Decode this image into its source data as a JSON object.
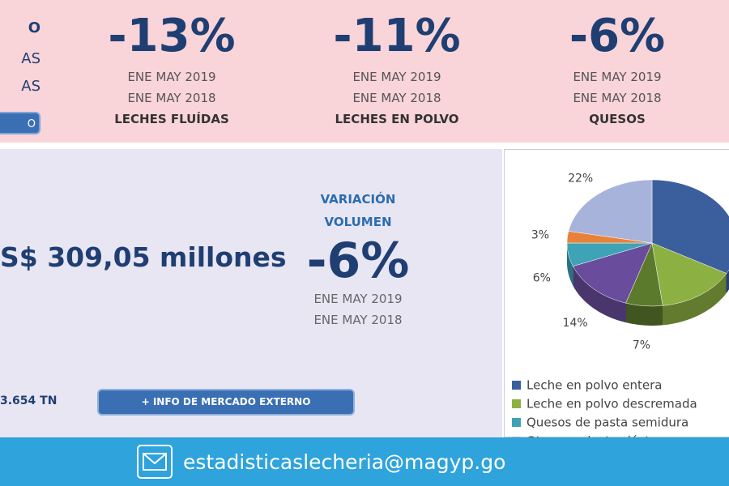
{
  "header": {
    "left": {
      "lines": [
        "O",
        "AS",
        "AS"
      ],
      "button": "O"
    },
    "stats": [
      {
        "value": "-13%",
        "period_current": "ENE MAY 2019",
        "period_previous": "ENE MAY 2018",
        "label": "LECHES FLUÍDAS"
      },
      {
        "value": "-11%",
        "period_current": "ENE MAY 2019",
        "period_previous": "ENE MAY 2018",
        "label": "LECHES EN POLVO"
      },
      {
        "value": "-6%",
        "period_current": "ENE MAY 2019",
        "period_previous": "ENE MAY 2018",
        "label": "QUESOS"
      }
    ]
  },
  "exports": {
    "amount": "S$ 309,05 millones",
    "variation_title": [
      "VARIACIÓN",
      "VOLUMEN"
    ],
    "variation": "-6%",
    "periods": [
      "ENE MAY 2019",
      "ENE MAY 2018"
    ],
    "volume": "3.654 TN",
    "button": "+ INFO DE MERCADO EXTERNO"
  },
  "pie": {
    "type": "pie",
    "values": [
      33,
      15,
      7,
      14,
      6,
      3,
      22
    ],
    "value_labels": [
      null,
      null,
      "7%",
      "14%",
      "6%",
      "3%",
      "22%"
    ],
    "colors": [
      "#3b5f9c",
      "#8db043",
      "#5c7a2c",
      "#6a4c9c",
      "#3ea3b6",
      "#e8823a",
      "#a7b3da"
    ],
    "legend": {
      "labels": [
        "Leche en polvo entera",
        "Leche en polvo descremada",
        "Quesos de pasta semidura",
        "Otros productos lácteos"
      ],
      "colors": [
        "#3b5f9c",
        "#8db043",
        "#3ea3b6",
        "#a7b3da"
      ]
    }
  },
  "footer": {
    "email": "estadisticaslecheria@magyp.go"
  }
}
